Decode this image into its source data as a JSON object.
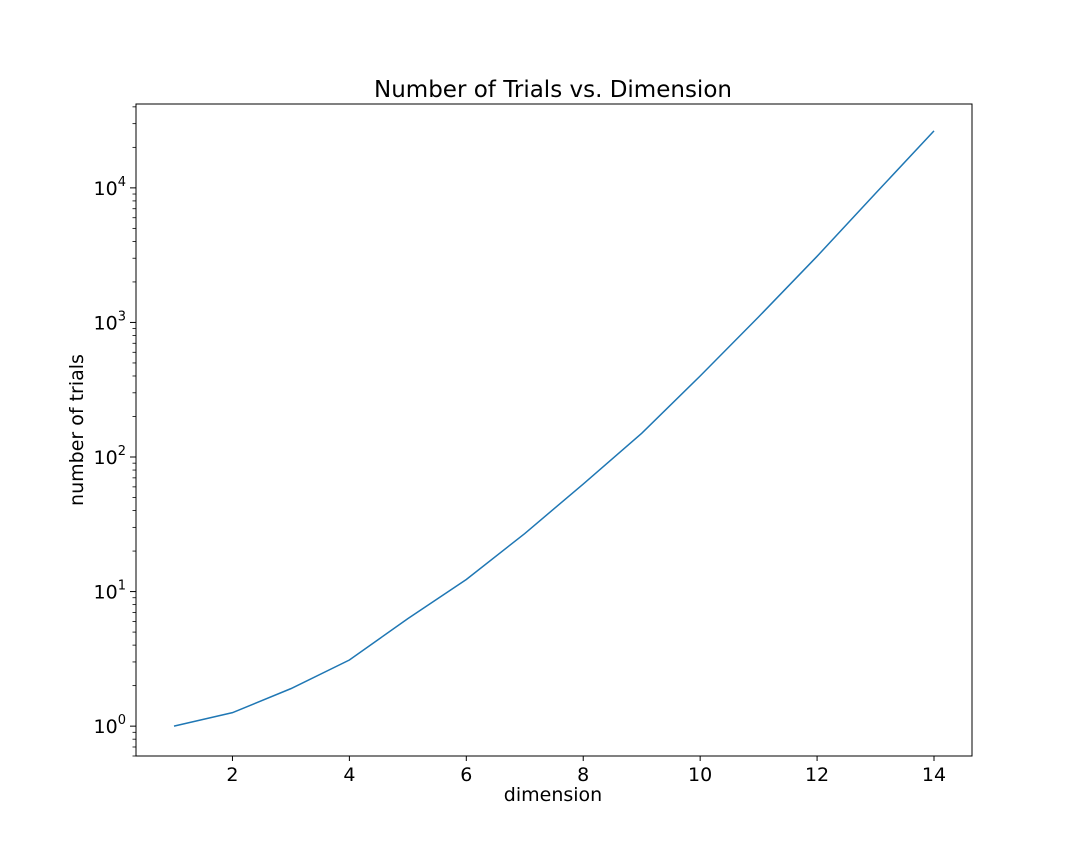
{
  "chart_data": {
    "type": "line",
    "title": "Number of Trials vs. Dimension",
    "xlabel": "dimension",
    "ylabel": "number of trials",
    "xscale": "linear",
    "yscale": "log",
    "xlim": [
      0.35,
      14.65
    ],
    "ylim": [
      0.6,
      42000
    ],
    "grid": false,
    "legend": "none",
    "x_ticks": [
      2,
      4,
      6,
      8,
      10,
      12,
      14
    ],
    "x_tick_labels": [
      "2",
      "4",
      "6",
      "8",
      "10",
      "12",
      "14"
    ],
    "y_ticks": [
      1,
      10,
      100,
      1000,
      10000
    ],
    "y_tick_labels": [
      {
        "base": "10",
        "exp": "0"
      },
      {
        "base": "10",
        "exp": "1"
      },
      {
        "base": "10",
        "exp": "2"
      },
      {
        "base": "10",
        "exp": "3"
      },
      {
        "base": "10",
        "exp": "4"
      }
    ],
    "series": [
      {
        "color": "#1f77b4",
        "x": [
          1,
          2,
          3,
          4,
          5,
          6,
          7,
          8,
          9,
          10,
          11,
          12,
          13,
          14
        ],
        "y": [
          1,
          1.26,
          1.9,
          3.1,
          6.3,
          12.3,
          27,
          63,
          150,
          400,
          1100,
          3100,
          9100,
          26500
        ]
      }
    ]
  }
}
